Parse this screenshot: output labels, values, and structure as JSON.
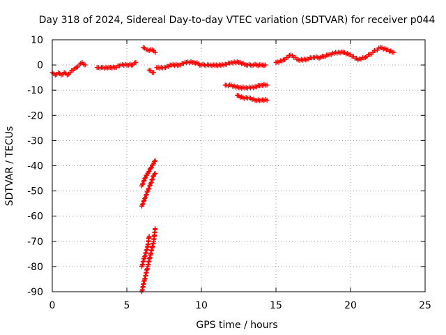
{
  "chart_data": {
    "type": "scatter",
    "title": "Day 318 of 2024, Sidereal Day-to-day VTEC variation (SDTVAR) for receiver p044",
    "xlabel": "GPS time / hours",
    "ylabel": "SDTVAR / TECUs",
    "xlim": [
      0,
      25
    ],
    "ylim": [
      -90,
      10
    ],
    "x_ticks": [
      0,
      5,
      10,
      15,
      20,
      25
    ],
    "y_ticks": [
      10,
      0,
      -10,
      -20,
      -30,
      -40,
      -50,
      -60,
      -70,
      -80,
      -90
    ],
    "grid": true,
    "marker": "plus",
    "series": [
      {
        "name": "SDTVAR",
        "color": "#ff0000",
        "segments": [
          {
            "x": [
              0.0,
              0.2,
              0.4,
              0.6,
              0.8,
              1.0,
              1.2,
              1.4,
              1.6,
              1.8,
              2.0,
              2.2
            ],
            "y": [
              -3,
              -4,
              -3,
              -4,
              -3,
              -4,
              -3,
              -2,
              -1,
              0,
              1,
              0
            ]
          },
          {
            "x": [
              3.0,
              3.4,
              3.8,
              4.2,
              4.6,
              5.0,
              5.4,
              5.6
            ],
            "y": [
              -1,
              -1,
              -1,
              -1,
              0,
              0,
              0,
              1
            ]
          },
          {
            "x": [
              6.1,
              6.4,
              6.7,
              6.9
            ],
            "y": [
              7,
              6,
              6,
              5
            ]
          },
          {
            "x": [
              6.5,
              6.8
            ],
            "y": [
              -2,
              -3
            ]
          },
          {
            "x": [
              7.0,
              7.5,
              8.0,
              8.5,
              9.0,
              9.5,
              10.0,
              10.5,
              11.0,
              11.5,
              12.0,
              12.5,
              13.0,
              13.5,
              14.0,
              14.3
            ],
            "y": [
              -1,
              -1,
              0,
              0,
              1,
              1,
              0,
              0,
              0,
              0,
              1,
              1,
              0,
              0,
              0,
              0
            ]
          },
          {
            "x": [
              11.6,
              12.0,
              12.5,
              13.0,
              13.5,
              14.0,
              14.4
            ],
            "y": [
              -8,
              -8,
              -9,
              -9,
              -9,
              -8,
              -8
            ]
          },
          {
            "x": [
              12.4,
              12.8,
              13.2,
              13.6,
              14.0,
              14.4
            ],
            "y": [
              -12,
              -13,
              -13,
              -14,
              -14,
              -14
            ]
          },
          {
            "x": [
              15.0,
              15.5,
              16.0,
              16.5,
              17.0,
              17.5,
              18.0,
              18.5,
              19.0,
              19.5,
              20.0,
              20.5,
              21.0,
              21.5,
              22.0,
              22.5,
              22.9
            ],
            "y": [
              1,
              2,
              4,
              2,
              2,
              3,
              3,
              4,
              5,
              5,
              4,
              2,
              3,
              5,
              7,
              6,
              5
            ]
          },
          {
            "x": [
              6.0,
              6.2,
              6.4,
              6.6,
              6.8,
              6.9
            ],
            "y": [
              -48,
              -45,
              -43,
              -41,
              -39,
              -38
            ]
          },
          {
            "x": [
              6.0,
              6.2,
              6.4,
              6.6,
              6.8,
              6.9
            ],
            "y": [
              -56,
              -53,
              -50,
              -47,
              -44,
              -43
            ]
          },
          {
            "x": [
              6.0,
              6.2,
              6.4,
              6.5
            ],
            "y": [
              -80,
              -76,
              -72,
              -68
            ]
          },
          {
            "x": [
              6.0,
              6.2,
              6.4,
              6.6,
              6.8,
              6.9
            ],
            "y": [
              -90,
              -85,
              -80,
              -75,
              -70,
              -65
            ]
          }
        ]
      }
    ]
  }
}
